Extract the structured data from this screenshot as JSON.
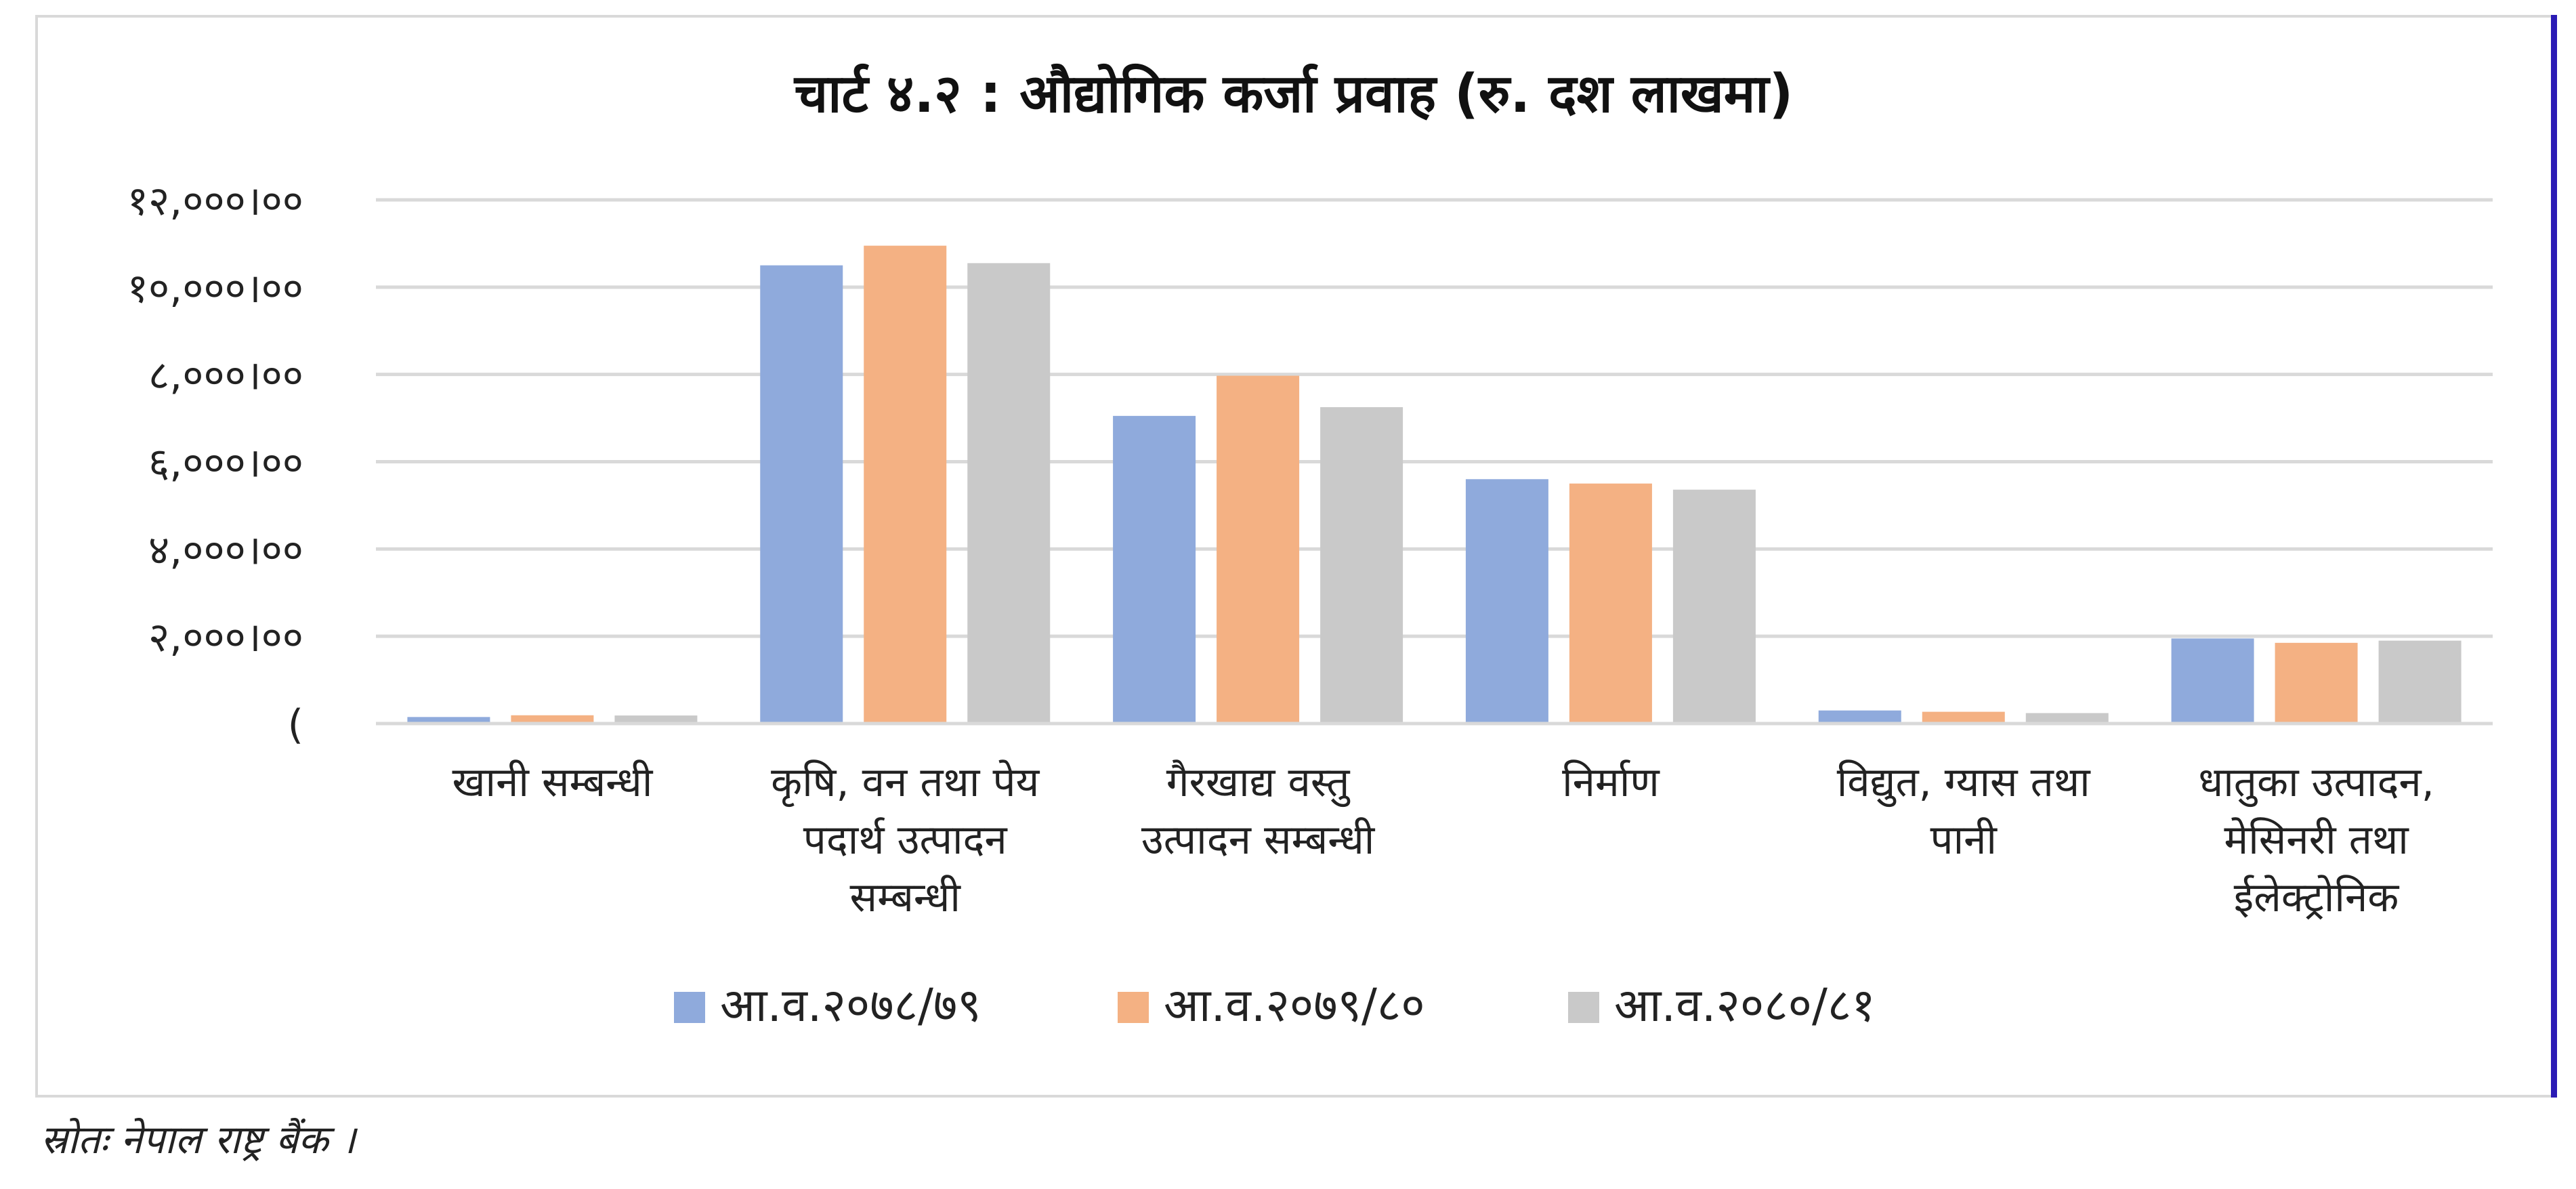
{
  "chart_data": {
    "type": "bar",
    "title": "चार्ट ४.२ : औद्योगिक कर्जा प्रवाह (रु. दश लाखमा)",
    "ylim": [
      0,
      12000
    ],
    "yticks": [
      {
        "value": 0,
        "label": "("
      },
      {
        "value": 2000,
        "label": "२,०००।००"
      },
      {
        "value": 4000,
        "label": "४,०००।००"
      },
      {
        "value": 6000,
        "label": "६,०००।००"
      },
      {
        "value": 8000,
        "label": "८,०००।००"
      },
      {
        "value": 10000,
        "label": "१०,०००।००"
      },
      {
        "value": 12000,
        "label": "१२,०००।००"
      }
    ],
    "grid": true,
    "legend_position": "bottom",
    "categories": [
      [
        "खानी सम्बन्धी"
      ],
      [
        "कृषि, वन तथा पेय",
        "पदार्थ उत्पादन",
        "सम्बन्धी"
      ],
      [
        "गैरखाद्य वस्तु",
        "उत्पादन सम्बन्धी"
      ],
      [
        "निर्माण"
      ],
      [
        "विद्युत, ग्यास तथा",
        "पानी"
      ],
      [
        "धातुका उत्पादन,",
        "मेसिनरी तथा",
        "ईलेक्ट्रोनिक"
      ]
    ],
    "series": [
      {
        "name": "आ.व.२०७८/७९",
        "color": "#8faadc",
        "values": [
          150,
          10500,
          7050,
          5600,
          300,
          1950
        ]
      },
      {
        "name": "आ.व.२०७९/८०",
        "color": "#f4b183",
        "values": [
          190,
          10950,
          7970,
          5500,
          270,
          1850
        ]
      },
      {
        "name": "आ.व.२०८०/८१",
        "color": "#c9c9c9",
        "values": [
          185,
          10550,
          7250,
          5360,
          240,
          1900
        ]
      }
    ]
  },
  "source": "स्रोतः नेपाल राष्ट्र बैंक ।"
}
